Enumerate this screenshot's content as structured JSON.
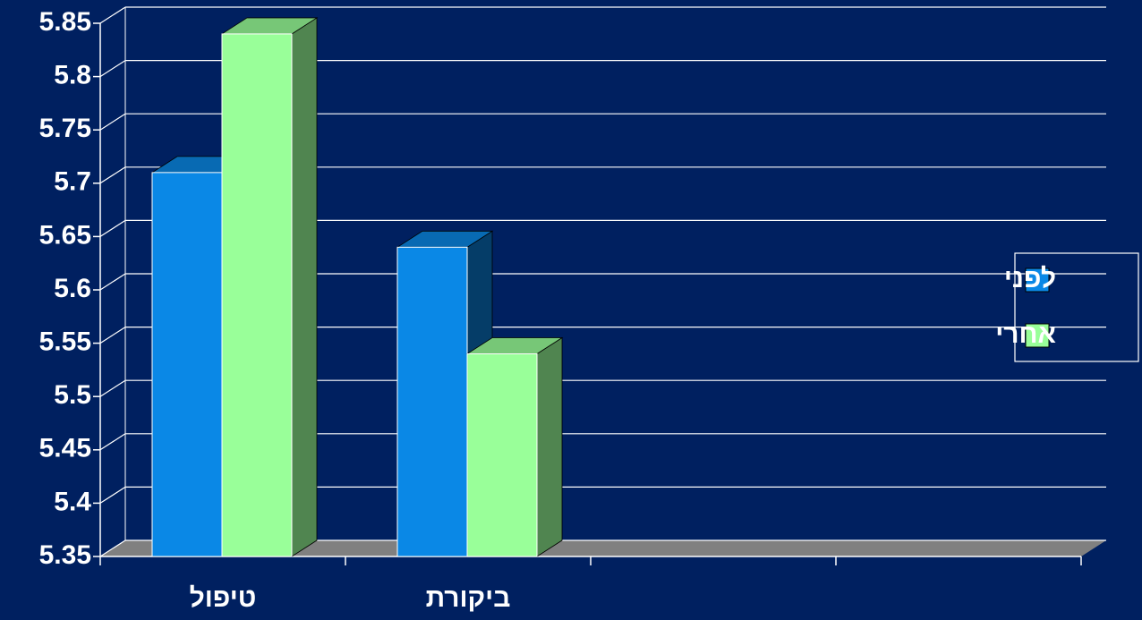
{
  "chart_data": {
    "type": "bar3d",
    "categories": [
      "טיפול",
      "ביקורת",
      null,
      null
    ],
    "series": [
      {
        "name": "לפני",
        "color": "#0a88e6",
        "values": [
          5.71,
          5.64,
          null,
          null
        ]
      },
      {
        "name": "אחרי",
        "color": "#99ff99",
        "values": [
          5.84,
          5.54,
          null,
          null
        ]
      }
    ],
    "ylim": [
      5.35,
      5.85
    ],
    "yticks": [
      5.35,
      5.4,
      5.45,
      5.5,
      5.55,
      5.6,
      5.65,
      5.7,
      5.75,
      5.8,
      5.85
    ],
    "grid": true,
    "legend": "right"
  }
}
